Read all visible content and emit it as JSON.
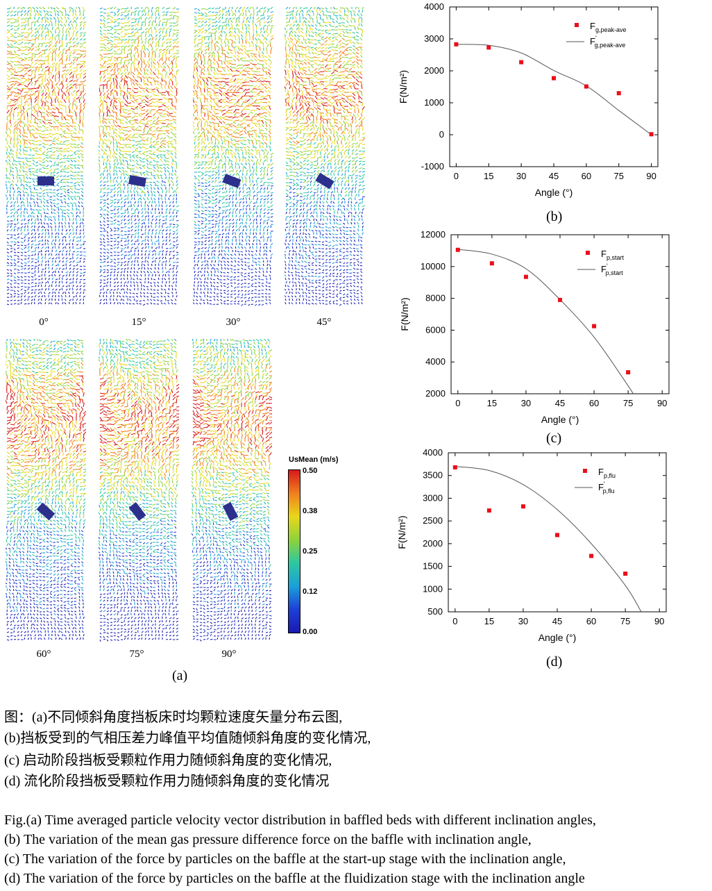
{
  "vector_panels": {
    "angles": [
      "0°",
      "15°",
      "30°",
      "45°",
      "60°",
      "75°",
      "90°"
    ],
    "label": "(a)"
  },
  "colorbar": {
    "title": "UsMean (m/s)",
    "ticks": [
      "0.50",
      "0.38",
      "0.25",
      "0.12",
      "0.00"
    ],
    "colors": [
      "#d7191c",
      "#f07f1e",
      "#e8d81a",
      "#8fd23a",
      "#2cc8a0",
      "#1c9fd8",
      "#1d3fd6",
      "#1a1ab0"
    ]
  },
  "chart_data": [
    {
      "id": "b",
      "type": "scatter",
      "panel_label": "(b)",
      "xlabel": "Angle (°)",
      "ylabel": "F(N/m²)",
      "xlim": [
        -3,
        93
      ],
      "ylim": [
        -1000,
        4000
      ],
      "xticks": [
        0,
        15,
        30,
        45,
        60,
        75,
        90
      ],
      "yticks": [
        -1000,
        0,
        1000,
        2000,
        3000,
        4000
      ],
      "x": [
        0,
        15,
        30,
        45,
        60,
        75,
        90
      ],
      "y": [
        2830,
        2730,
        2270,
        1770,
        1510,
        1300,
        15
      ],
      "fit_y": [
        2830,
        2800,
        2560,
        2010,
        1530,
        760,
        0
      ],
      "legend": {
        "point": "F",
        "point_sub": "g,peak-ave",
        "line": "F",
        "line_sup": "'",
        "line_sub": "g,peak-ave"
      }
    },
    {
      "id": "c",
      "type": "scatter",
      "panel_label": "(c)",
      "xlabel": "Angle (°)",
      "ylabel": "F(N/m²)",
      "xlim": [
        -3,
        93
      ],
      "ylim": [
        2000,
        12000
      ],
      "xticks": [
        0,
        15,
        30,
        45,
        60,
        75,
        90
      ],
      "yticks": [
        2000,
        4000,
        6000,
        8000,
        10000,
        12000
      ],
      "x": [
        0,
        15,
        30,
        45,
        60,
        75
      ],
      "y": [
        11050,
        10200,
        9350,
        7900,
        6250,
        3350
      ],
      "fit_y": [
        11080,
        10780,
        9860,
        7920,
        5560,
        2500,
        1800
      ],
      "fit_x": [
        0,
        15,
        30,
        45,
        60,
        75,
        78
      ],
      "legend": {
        "point": "F",
        "point_sub": "p,start",
        "line": "F",
        "line_sup": "'",
        "line_sub": "p,start"
      }
    },
    {
      "id": "d",
      "type": "scatter",
      "panel_label": "(d)",
      "xlabel": "Angle (°)",
      "ylabel": "F(N/m²)",
      "xlim": [
        -3,
        93
      ],
      "ylim": [
        500,
        4000
      ],
      "xticks": [
        0,
        15,
        30,
        45,
        60,
        75,
        90
      ],
      "yticks": [
        500,
        1000,
        1500,
        2000,
        2500,
        3000,
        3500,
        4000
      ],
      "x": [
        0,
        15,
        30,
        45,
        60,
        75
      ],
      "y": [
        3680,
        2730,
        2820,
        2190,
        1730,
        1340
      ],
      "fit_y": [
        3700,
        3610,
        3300,
        2750,
        2000,
        1080,
        500
      ],
      "fit_x": [
        0,
        15,
        30,
        45,
        60,
        75,
        82
      ],
      "legend": {
        "point": "F",
        "point_sub": "p,flu",
        "line": "F",
        "line_sup": "'",
        "line_sub": "p,flu"
      }
    }
  ],
  "caption": {
    "zh": [
      "图：(a)不同倾斜角度挡板床时均颗粒速度矢量分布云图,",
      "(b)挡板受到的气相压差力峰值平均值随倾斜角度的变化情况,",
      "(c) 启动阶段挡板受颗粒作用力随倾斜角度的变化情况,",
      "(d) 流化阶段挡板受颗粒作用力随倾斜角度的变化情况"
    ],
    "en": [
      "Fig.(a) Time averaged particle velocity vector distribution in baffled beds with different inclination angles,",
      " (b) The variation of the mean gas pressure difference force on the baffle with inclination angle,",
      "(c)  The variation of the force by particles on the baffle at the start-up stage with the inclination angle,",
      "(d)  The variation of the force by particles on the baffle at the fluidization stage with the inclination angle"
    ]
  }
}
